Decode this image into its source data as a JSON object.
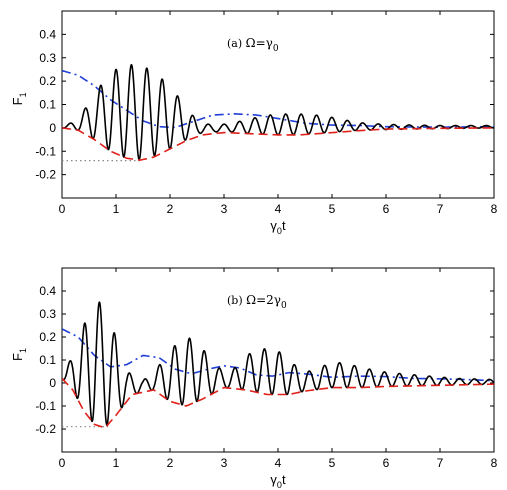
{
  "chart_data": [
    {
      "type": "line",
      "annotation": {
        "prefix": "(a) ",
        "omega": "Ω",
        "eq": "=",
        "coef": "",
        "gamma": "γ",
        "sub": "0"
      },
      "xlabel": {
        "main": "γ",
        "sub": "0",
        "tail": "t"
      },
      "ylabel": {
        "main": "F",
        "sub": "1"
      },
      "xlim": [
        0,
        8
      ],
      "ylim": [
        -0.3,
        0.5
      ],
      "xticks": [
        0,
        1,
        2,
        3,
        4,
        5,
        6,
        7,
        8
      ],
      "xticklabels": [
        "0",
        "1",
        "2",
        "3",
        "4",
        "5",
        "6",
        "7",
        "8"
      ],
      "yticks": [
        -0.2,
        -0.1,
        0,
        0.1,
        0.2,
        0.3,
        0.4
      ],
      "yticklabels": [
        "-0.2",
        "-0.1",
        "0",
        "0.1",
        "0.2",
        "0.3",
        "0.4"
      ],
      "grid": false,
      "legend": "none",
      "series": [
        {
          "style": "solid",
          "color": "#000000",
          "shape": {
            "freq": 3.5,
            "peaks": [
              [
                0.0,
                0.0
              ],
              [
                0.3,
                0.04
              ],
              [
                0.6,
                0.14
              ],
              [
                0.85,
                0.23
              ],
              [
                1.15,
                0.27
              ],
              [
                1.45,
                0.27
              ],
              [
                1.7,
                0.24
              ],
              [
                1.95,
                0.19
              ],
              [
                2.2,
                0.12
              ],
              [
                2.5,
                0.03
              ],
              [
                2.8,
                0.01
              ],
              [
                3.15,
                0.02
              ],
              [
                3.5,
                0.04
              ],
              [
                3.85,
                0.055
              ],
              [
                4.2,
                0.06
              ],
              [
                4.55,
                0.058
              ],
              [
                4.9,
                0.05
              ],
              [
                5.2,
                0.035
              ],
              [
                5.6,
                0.02
              ],
              [
                6.0,
                0.015
              ],
              [
                6.5,
                0.012
              ],
              [
                7.0,
                0.01
              ],
              [
                8.0,
                0.01
              ]
            ],
            "troughs": [
              [
                0.0,
                0.0
              ],
              [
                0.3,
                -0.01
              ],
              [
                0.6,
                -0.05
              ],
              [
                0.9,
                -0.1
              ],
              [
                1.2,
                -0.13
              ],
              [
                1.45,
                -0.135
              ],
              [
                1.7,
                -0.12
              ],
              [
                2.0,
                -0.09
              ],
              [
                2.3,
                -0.05
              ],
              [
                2.6,
                -0.02
              ],
              [
                3.0,
                -0.015
              ],
              [
                3.5,
                -0.025
              ],
              [
                4.0,
                -0.03
              ],
              [
                4.4,
                -0.028
              ],
              [
                4.9,
                -0.02
              ],
              [
                5.5,
                -0.01
              ],
              [
                6.5,
                -0.005
              ],
              [
                8.0,
                0.0
              ]
            ]
          }
        },
        {
          "style": "dashdot",
          "color": "#1f3fd6",
          "points": [
            [
              0.0,
              0.245
            ],
            [
              0.3,
              0.225
            ],
            [
              0.6,
              0.18
            ],
            [
              0.9,
              0.12
            ],
            [
              1.2,
              0.075
            ],
            [
              1.5,
              0.03
            ],
            [
              1.8,
              0.005
            ],
            [
              2.1,
              0.002
            ],
            [
              2.4,
              0.025
            ],
            [
              2.8,
              0.055
            ],
            [
              3.2,
              0.06
            ],
            [
              3.6,
              0.055
            ],
            [
              4.0,
              0.04
            ],
            [
              4.5,
              0.02
            ],
            [
              5.0,
              0.012
            ],
            [
              5.5,
              0.01
            ],
            [
              6.0,
              0.005
            ],
            [
              7.0,
              0.003
            ],
            [
              8.0,
              0.005
            ]
          ]
        },
        {
          "style": "dashed",
          "color": "#e0201a",
          "points": [
            [
              0.0,
              0.0
            ],
            [
              0.3,
              -0.01
            ],
            [
              0.6,
              -0.05
            ],
            [
              0.9,
              -0.1
            ],
            [
              1.2,
              -0.13
            ],
            [
              1.45,
              -0.138
            ],
            [
              1.7,
              -0.125
            ],
            [
              2.0,
              -0.09
            ],
            [
              2.3,
              -0.055
            ],
            [
              2.6,
              -0.03
            ],
            [
              3.0,
              -0.02
            ],
            [
              3.5,
              -0.025
            ],
            [
              4.0,
              -0.03
            ],
            [
              4.4,
              -0.03
            ],
            [
              4.9,
              -0.022
            ],
            [
              5.5,
              -0.012
            ],
            [
              6.0,
              -0.005
            ],
            [
              7.0,
              -0.002
            ],
            [
              8.0,
              0.0
            ]
          ]
        },
        {
          "style": "dotted",
          "color": "#888888",
          "points": [
            [
              0.0,
              -0.14
            ],
            [
              1.45,
              -0.14
            ]
          ]
        }
      ]
    },
    {
      "type": "line",
      "annotation": {
        "prefix": "(b) ",
        "omega": "Ω",
        "eq": "=",
        "coef": "2",
        "gamma": "γ",
        "sub": "0"
      },
      "xlabel": {
        "main": "γ",
        "sub": "0",
        "tail": "t"
      },
      "ylabel": {
        "main": "F",
        "sub": "1"
      },
      "xlim": [
        0,
        8
      ],
      "ylim": [
        -0.3,
        0.5
      ],
      "xticks": [
        0,
        1,
        2,
        3,
        4,
        5,
        6,
        7,
        8
      ],
      "xticklabels": [
        "0",
        "1",
        "2",
        "3",
        "4",
        "5",
        "6",
        "7",
        "8"
      ],
      "yticks": [
        -0.2,
        -0.1,
        0,
        0.1,
        0.2,
        0.3,
        0.4
      ],
      "yticklabels": [
        "-0.2",
        "-0.1",
        "0",
        "0.1",
        "0.2",
        "0.3",
        "0.4"
      ],
      "grid": false,
      "legend": "none",
      "series": [
        {
          "style": "solid",
          "color": "#000000",
          "shape": {
            "freq": 3.6,
            "peaks": [
              [
                0.0,
                0.02
              ],
              [
                0.25,
                0.15
              ],
              [
                0.45,
                0.28
              ],
              [
                0.62,
                0.37
              ],
              [
                0.78,
                0.33
              ],
              [
                1.0,
                0.2
              ],
              [
                1.2,
                0.05
              ],
              [
                1.5,
                0.01
              ],
              [
                1.9,
                0.1
              ],
              [
                2.2,
                0.2
              ],
              [
                2.5,
                0.19
              ],
              [
                2.8,
                0.08
              ],
              [
                3.1,
                0.04
              ],
              [
                3.4,
                0.12
              ],
              [
                3.7,
                0.15
              ],
              [
                4.0,
                0.14
              ],
              [
                4.3,
                0.08
              ],
              [
                4.6,
                0.05
              ],
              [
                4.9,
                0.08
              ],
              [
                5.2,
                0.09
              ],
              [
                5.5,
                0.07
              ],
              [
                5.9,
                0.05
              ],
              [
                6.3,
                0.04
              ],
              [
                6.8,
                0.03
              ],
              [
                7.3,
                0.02
              ],
              [
                8.0,
                0.015
              ]
            ],
            "troughs": [
              [
                0.0,
                0.02
              ],
              [
                0.2,
                -0.03
              ],
              [
                0.4,
                -0.12
              ],
              [
                0.6,
                -0.18
              ],
              [
                0.8,
                -0.19
              ],
              [
                1.0,
                -0.14
              ],
              [
                1.3,
                -0.05
              ],
              [
                1.7,
                -0.03
              ],
              [
                2.0,
                -0.08
              ],
              [
                2.3,
                -0.1
              ],
              [
                2.6,
                -0.07
              ],
              [
                3.0,
                -0.02
              ],
              [
                3.4,
                -0.03
              ],
              [
                3.8,
                -0.05
              ],
              [
                4.2,
                -0.05
              ],
              [
                4.5,
                -0.035
              ],
              [
                5.0,
                -0.02
              ],
              [
                5.5,
                -0.02
              ],
              [
                6.0,
                -0.015
              ],
              [
                7.0,
                -0.01
              ],
              [
                8.0,
                -0.005
              ]
            ]
          }
        },
        {
          "style": "dashdot",
          "color": "#1f3fd6",
          "points": [
            [
              0.0,
              0.235
            ],
            [
              0.3,
              0.2
            ],
            [
              0.6,
              0.12
            ],
            [
              0.9,
              0.07
            ],
            [
              1.2,
              0.08
            ],
            [
              1.5,
              0.12
            ],
            [
              1.8,
              0.11
            ],
            [
              2.1,
              0.06
            ],
            [
              2.4,
              0.04
            ],
            [
              2.7,
              0.06
            ],
            [
              3.0,
              0.075
            ],
            [
              3.3,
              0.065
            ],
            [
              3.6,
              0.035
            ],
            [
              3.9,
              0.03
            ],
            [
              4.2,
              0.045
            ],
            [
              4.5,
              0.04
            ],
            [
              5.0,
              0.025
            ],
            [
              5.5,
              0.03
            ],
            [
              6.0,
              0.028
            ],
            [
              6.5,
              0.02
            ],
            [
              7.0,
              0.018
            ],
            [
              7.5,
              0.015
            ],
            [
              8.0,
              0.01
            ]
          ]
        },
        {
          "style": "dashed",
          "color": "#e0201a",
          "points": [
            [
              0.0,
              0.02
            ],
            [
              0.2,
              -0.03
            ],
            [
              0.4,
              -0.12
            ],
            [
              0.6,
              -0.18
            ],
            [
              0.8,
              -0.195
            ],
            [
              1.0,
              -0.14
            ],
            [
              1.3,
              -0.05
            ],
            [
              1.7,
              -0.03
            ],
            [
              2.0,
              -0.08
            ],
            [
              2.3,
              -0.1
            ],
            [
              2.6,
              -0.07
            ],
            [
              3.0,
              -0.02
            ],
            [
              3.4,
              -0.03
            ],
            [
              3.8,
              -0.05
            ],
            [
              4.2,
              -0.05
            ],
            [
              4.5,
              -0.035
            ],
            [
              5.0,
              -0.02
            ],
            [
              5.5,
              -0.02
            ],
            [
              6.0,
              -0.015
            ],
            [
              7.0,
              -0.01
            ],
            [
              8.0,
              -0.005
            ]
          ]
        },
        {
          "style": "dotted",
          "color": "#888888",
          "points": [
            [
              0.0,
              -0.19
            ],
            [
              0.85,
              -0.19
            ]
          ]
        }
      ]
    }
  ]
}
